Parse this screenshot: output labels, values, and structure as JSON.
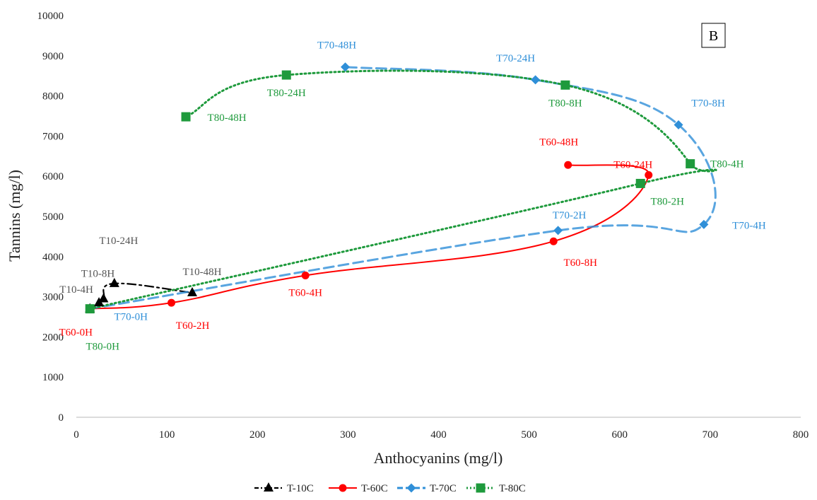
{
  "chart_data": {
    "type": "line",
    "panel_label": "B",
    "xlabel": "Anthocyanins (mg/l)",
    "ylabel": "Tannins (mg/l)",
    "xlim": [
      0,
      800
    ],
    "ylim": [
      0,
      10000
    ],
    "xticks": [
      0,
      100,
      200,
      300,
      400,
      500,
      600,
      700,
      800
    ],
    "yticks": [
      0,
      1000,
      2000,
      3000,
      4000,
      5000,
      6000,
      7000,
      8000,
      9000,
      10000
    ],
    "grid": false,
    "legend_position": "bottom",
    "series": [
      {
        "name": "T-10C",
        "color": "#000000",
        "marker": "triangle",
        "line_style": "dash-dot",
        "points": [
          {
            "x": 15,
            "y": 2700,
            "label": ""
          },
          {
            "x": 25,
            "y": 2850,
            "label": "T10-4H"
          },
          {
            "x": 30,
            "y": 2950,
            "label": "T10-8H"
          },
          {
            "x": 42,
            "y": 3330,
            "label": "T10-24H"
          },
          {
            "x": 128,
            "y": 3100,
            "label": "T10-48H"
          }
        ]
      },
      {
        "name": "T-60C",
        "color": "#ff0000",
        "marker": "circle",
        "line_style": "solid",
        "points": [
          {
            "x": 15,
            "y": 2700,
            "label": "T60-0H"
          },
          {
            "x": 105,
            "y": 2850,
            "label": "T60-2H"
          },
          {
            "x": 253,
            "y": 3530,
            "label": "T60-4H"
          },
          {
            "x": 527,
            "y": 4380,
            "label": "T60-8H"
          },
          {
            "x": 632,
            "y": 6030,
            "label": "T60-24H"
          },
          {
            "x": 543,
            "y": 6280,
            "label": "T60-48H"
          }
        ]
      },
      {
        "name": "T-70C",
        "color": "#2f8fd8",
        "marker": "diamond",
        "line_style": "dashed",
        "points": [
          {
            "x": 15,
            "y": 2700,
            "label": "T70-0H"
          },
          {
            "x": 532,
            "y": 4650,
            "label": "T70-2H"
          },
          {
            "x": 693,
            "y": 4800,
            "label": "T70-4H"
          },
          {
            "x": 665,
            "y": 7280,
            "label": "T70-8H"
          },
          {
            "x": 507,
            "y": 8400,
            "label": "T70-24H"
          },
          {
            "x": 297,
            "y": 8720,
            "label": "T70-48H"
          }
        ]
      },
      {
        "name": "T-80C",
        "color": "#1e9a3c",
        "marker": "square",
        "line_style": "dotted",
        "points": [
          {
            "x": 15,
            "y": 2700,
            "label": "T80-0H"
          },
          {
            "x": 623,
            "y": 5820,
            "label": "T80-2H"
          },
          {
            "x": 678,
            "y": 6310,
            "label": "T80-4H"
          },
          {
            "x": 540,
            "y": 8270,
            "label": "T80-8H"
          },
          {
            "x": 232,
            "y": 8520,
            "label": "T80-24H"
          },
          {
            "x": 121,
            "y": 7480,
            "label": "T80-48H"
          }
        ]
      }
    ]
  }
}
